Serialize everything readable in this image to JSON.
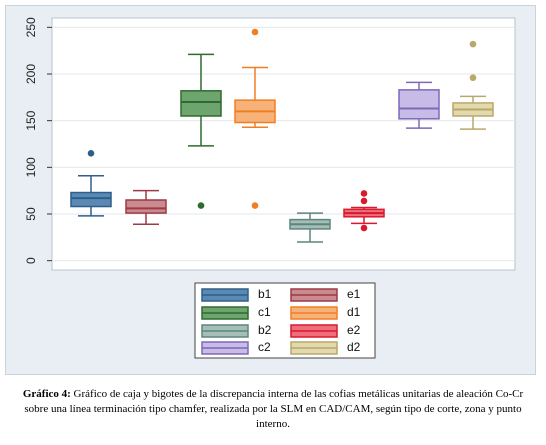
{
  "chart_data": {
    "type": "box",
    "ylim": [
      -10,
      260
    ],
    "yticks": [
      0,
      50,
      100,
      150,
      200,
      250
    ],
    "grid": true,
    "legend_position": "bottom",
    "series": [
      {
        "name": "b1",
        "color": "#2d5f8a",
        "fill": "#5a8ab3",
        "whisker_low": 48,
        "q1": 58,
        "median": 67,
        "q3": 73,
        "whisker_high": 91,
        "outliers": [
          115
        ]
      },
      {
        "name": "e1",
        "color": "#9e3a45",
        "fill": "#c98a90",
        "whisker_low": 39,
        "q1": 51,
        "median": 56,
        "q3": 65,
        "whisker_high": 75,
        "outliers": []
      },
      {
        "name": "c1",
        "color": "#2f6b2f",
        "fill": "#6ea56e",
        "whisker_low": 123,
        "q1": 155,
        "median": 170,
        "q3": 182,
        "whisker_high": 221,
        "outliers": [
          59
        ]
      },
      {
        "name": "d1",
        "color": "#f07f24",
        "fill": "#f7b27a",
        "whisker_low": 143,
        "q1": 148,
        "median": 160,
        "q3": 172,
        "whisker_high": 207,
        "outliers": [
          245,
          59
        ]
      },
      {
        "name": "b2",
        "color": "#5d857c",
        "fill": "#a5bfb8",
        "whisker_low": 20,
        "q1": 34,
        "median": 39,
        "q3": 44,
        "whisker_high": 51,
        "outliers": []
      },
      {
        "name": "e2",
        "color": "#d8192e",
        "fill": "#ee6e7b",
        "whisker_low": 40,
        "q1": 47,
        "median": 51,
        "q3": 55,
        "whisker_high": 57,
        "outliers": [
          72,
          64,
          35
        ]
      },
      {
        "name": "c2",
        "color": "#7e68b8",
        "fill": "#c7bbe8",
        "whisker_low": 142,
        "q1": 152,
        "median": 163,
        "q3": 183,
        "whisker_high": 191,
        "outliers": []
      },
      {
        "name": "d2",
        "color": "#b9a86a",
        "fill": "#e2d9ae",
        "whisker_low": 141,
        "q1": 155,
        "median": 162,
        "q3": 169,
        "whisker_high": 176,
        "outliers": [
          196,
          232
        ]
      }
    ]
  },
  "caption": {
    "label": "Gráfico 4:",
    "text": "Gráfico de caja y bigotes de la discrepancia interna de las cofias metálicas unitarias de aleación Co-Cr sobre una línea terminación tipo chamfer, realizada por la SLM en CAD/CAM, según tipo de corte, zona y punto interno."
  }
}
